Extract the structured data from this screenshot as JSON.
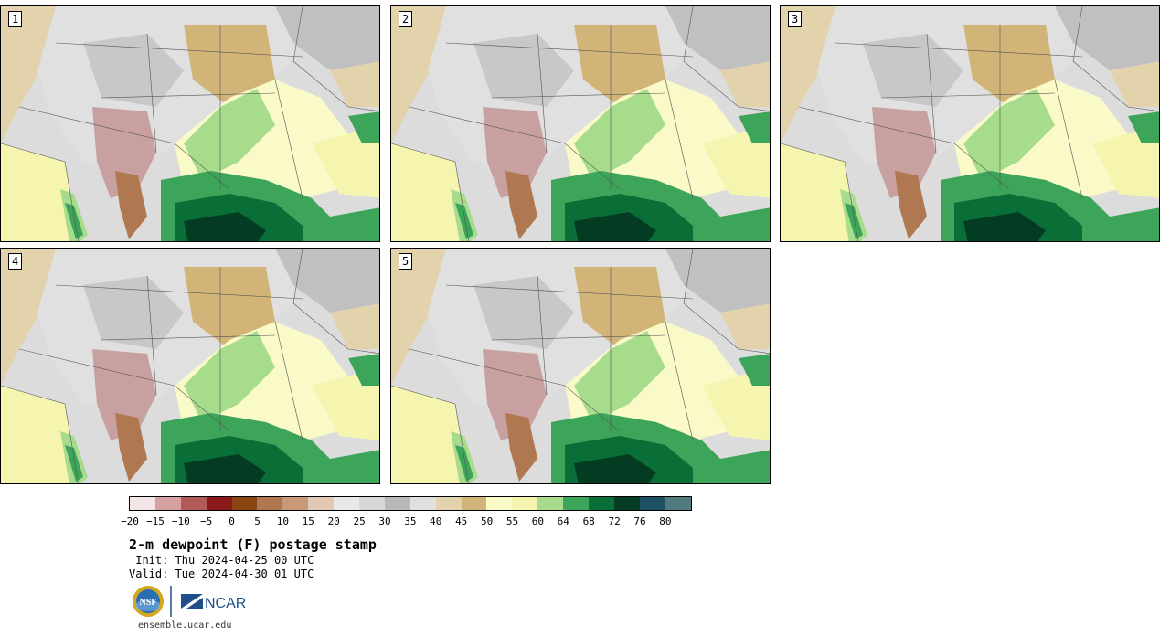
{
  "panels": [
    {
      "label": "1"
    },
    {
      "label": "2"
    },
    {
      "label": "3"
    },
    {
      "label": "4"
    },
    {
      "label": "5"
    }
  ],
  "colorbar": {
    "colors": [
      "#f4e6e6",
      "#d4a0a0",
      "#b05a5a",
      "#8b1a1a",
      "#8b4513",
      "#b07850",
      "#c89878",
      "#e0c8b4",
      "#e8e8e8",
      "#d8d8d8",
      "#b8b8b8",
      "#e0e0e0",
      "#e3d3ac",
      "#d2b478",
      "#fafac8",
      "#f5f5b0",
      "#a6dc8c",
      "#3ca55a",
      "#0a6e37",
      "#043c23",
      "#1e5064",
      "#507a7e"
    ],
    "ticks": [
      "−20",
      "−15",
      "−10",
      "−5",
      "0",
      "5",
      "10",
      "15",
      "20",
      "25",
      "30",
      "35",
      "40",
      "45",
      "50",
      "55",
      "60",
      "64",
      "68",
      "72",
      "76",
      "80"
    ]
  },
  "title": "2-m dewpoint (F) postage stamp",
  "init": " Init: Thu 2024-04-25 00 UTC",
  "valid": "Valid: Tue 2024-04-30 01 UTC",
  "logos": {
    "nsf": "NSF",
    "ncar": "NCAR"
  },
  "site": "ensemble.ucar.edu"
}
